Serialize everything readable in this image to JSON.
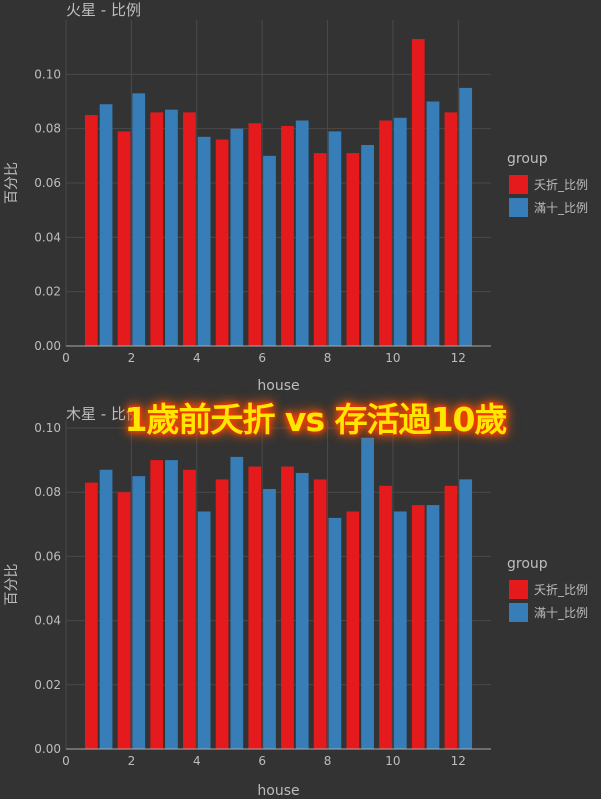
{
  "colors": {
    "series1": "#e41a1c",
    "series2": "#377eb8",
    "background": "#333333",
    "grid": "#4a4a4a",
    "text": "#bdbdbd",
    "overlay": "#ffe600"
  },
  "overlay_title": "1歲前夭折 vs 存活過10歲",
  "chart_data": [
    {
      "type": "bar",
      "title": "火星 - 比例",
      "xlabel": "house",
      "ylabel": "百分比",
      "x": [
        1,
        2,
        3,
        4,
        5,
        6,
        7,
        8,
        9,
        10,
        11,
        12
      ],
      "xticks": [
        "0",
        "2",
        "4",
        "6",
        "8",
        "10",
        "12"
      ],
      "yticks": [
        "0.00",
        "0.02",
        "0.04",
        "0.06",
        "0.08",
        "0.10"
      ],
      "xlim": [
        0,
        13
      ],
      "ylim": [
        0,
        0.12
      ],
      "legend_title": "group",
      "legend_position": "right",
      "series": [
        {
          "name": "夭折_比例",
          "values": [
            0.085,
            0.079,
            0.086,
            0.086,
            0.076,
            0.082,
            0.081,
            0.071,
            0.071,
            0.083,
            0.113,
            0.086
          ]
        },
        {
          "name": "滿十_比例",
          "values": [
            0.089,
            0.093,
            0.087,
            0.077,
            0.08,
            0.07,
            0.083,
            0.079,
            0.074,
            0.084,
            0.09,
            0.095
          ]
        }
      ]
    },
    {
      "type": "bar",
      "title": "木星 - 比例",
      "xlabel": "house",
      "ylabel": "百分比",
      "x": [
        1,
        2,
        3,
        4,
        5,
        6,
        7,
        8,
        9,
        10,
        11,
        12
      ],
      "xticks": [
        "0",
        "2",
        "4",
        "6",
        "8",
        "10",
        "12"
      ],
      "yticks": [
        "0.00",
        "0.02",
        "0.04",
        "0.06",
        "0.08",
        "0.10"
      ],
      "xlim": [
        0,
        13
      ],
      "ylim": [
        0,
        0.1025
      ],
      "legend_title": "group",
      "legend_position": "right",
      "series": [
        {
          "name": "夭折_比例",
          "values": [
            0.083,
            0.08,
            0.09,
            0.087,
            0.084,
            0.088,
            0.088,
            0.084,
            0.074,
            0.082,
            0.076,
            0.082
          ]
        },
        {
          "name": "滿十_比例",
          "values": [
            0.087,
            0.085,
            0.09,
            0.074,
            0.091,
            0.081,
            0.086,
            0.072,
            0.097,
            0.074,
            0.076,
            0.084
          ]
        }
      ]
    }
  ]
}
